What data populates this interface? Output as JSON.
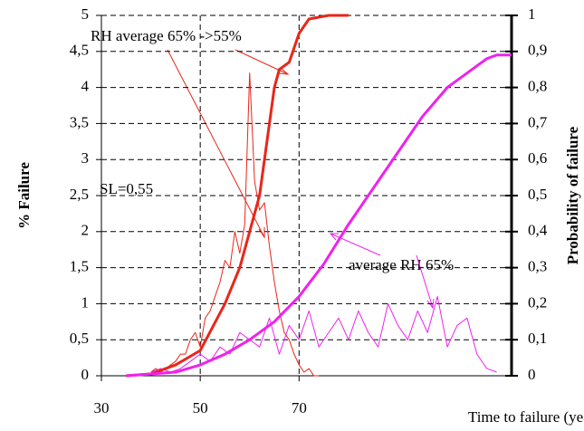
{
  "chart_data": {
    "type": "line",
    "annotations": [
      "RH average 65% ->55%",
      "SL=0,55",
      "average RH  65%"
    ],
    "xlabel": "Time to failure (year)",
    "ylabel": "% Failure",
    "y2label": "Probability of failure",
    "xlim": [
      30,
      113
    ],
    "xticks": [
      30,
      50,
      70
    ],
    "ylim": [
      0,
      5
    ],
    "yticks": [
      0,
      {
        "value": 0.5,
        "label": "0,5"
      },
      1,
      {
        "value": 1.5,
        "label": "1,5"
      },
      2,
      {
        "value": 2.5,
        "label": "2,5"
      },
      3,
      {
        "value": 3.5,
        "label": "3,5"
      },
      4,
      {
        "value": 4.5,
        "label": "4,5"
      },
      5
    ],
    "y2lim": [
      0,
      1
    ],
    "y2ticks": [
      0,
      {
        "value": 0.1,
        "label": "0,1"
      },
      {
        "value": 0.2,
        "label": "0,2"
      },
      {
        "value": 0.3,
        "label": "0,3"
      },
      {
        "value": 0.4,
        "label": "0,4"
      },
      {
        "value": 0.5,
        "label": "0,5"
      },
      {
        "value": 0.6,
        "label": "0,6"
      },
      {
        "value": 0.7,
        "label": "0,7"
      },
      {
        "value": 0.8,
        "label": "0,8"
      },
      {
        "value": 0.9,
        "label": "0,9"
      },
      1
    ],
    "grid": true,
    "series": [
      {
        "color": "#e8261a",
        "width": 1,
        "x": [
          40,
          41,
          42,
          43,
          44,
          45,
          46,
          47,
          48,
          49,
          50,
          51,
          52,
          53,
          54,
          55,
          56,
          57,
          58,
          59,
          60,
          61,
          62,
          63,
          64,
          65,
          66,
          67,
          68,
          69,
          70,
          71,
          72,
          73,
          74
        ],
        "values": [
          0.05,
          0.1,
          0.05,
          0.1,
          0.15,
          0.2,
          0.3,
          0.3,
          0.5,
          0.6,
          0.4,
          0.8,
          0.9,
          1.1,
          1.3,
          1.6,
          1.5,
          2.0,
          1.7,
          2.1,
          4.2,
          2.7,
          2.3,
          2.4,
          1.8,
          1.3,
          0.9,
          0.6,
          0.5,
          0.3,
          0.15,
          0.05,
          0.1,
          0,
          0
        ]
      },
      {
        "color": "#ee22ee",
        "width": 1,
        "x": [
          40,
          42,
          44,
          46,
          48,
          50,
          52,
          54,
          56,
          58,
          60,
          62,
          64,
          66,
          68,
          70,
          72,
          74,
          76,
          78,
          80,
          82,
          84,
          86,
          88,
          90,
          92,
          94,
          96,
          98,
          100,
          102,
          104,
          106,
          108,
          110
        ],
        "values": [
          0.05,
          0.1,
          0.05,
          0.1,
          0.2,
          0.3,
          0.2,
          0.4,
          0.3,
          0.6,
          0.5,
          0.4,
          0.8,
          0.3,
          0.7,
          0.5,
          0.9,
          0.4,
          0.6,
          0.8,
          0.5,
          0.9,
          0.6,
          0.4,
          1.0,
          0.7,
          0.5,
          0.9,
          0.6,
          1.1,
          0.4,
          0.7,
          0.8,
          0.3,
          0.1,
          0.05
        ]
      },
      {
        "color": "#e8261a",
        "width": 3,
        "axis": "y2",
        "x": [
          35,
          40,
          45,
          50,
          55,
          58,
          60,
          62,
          63,
          64,
          65,
          66,
          68,
          70,
          72,
          76,
          80
        ],
        "values": [
          0,
          0.005,
          0.03,
          0.07,
          0.2,
          0.3,
          0.4,
          0.5,
          0.6,
          0.7,
          0.8,
          0.85,
          0.87,
          0.95,
          0.99,
          1.0,
          1.0
        ]
      },
      {
        "color": "#ee22ee",
        "width": 3,
        "axis": "y2",
        "x": [
          35,
          45,
          50,
          55,
          60,
          65,
          70,
          75,
          80,
          85,
          90,
          95,
          100,
          105,
          108,
          110,
          113
        ],
        "values": [
          0,
          0.01,
          0.03,
          0.06,
          0.1,
          0.15,
          0.22,
          0.31,
          0.42,
          0.52,
          0.62,
          0.72,
          0.8,
          0.85,
          0.88,
          0.89,
          0.89
        ]
      }
    ]
  }
}
